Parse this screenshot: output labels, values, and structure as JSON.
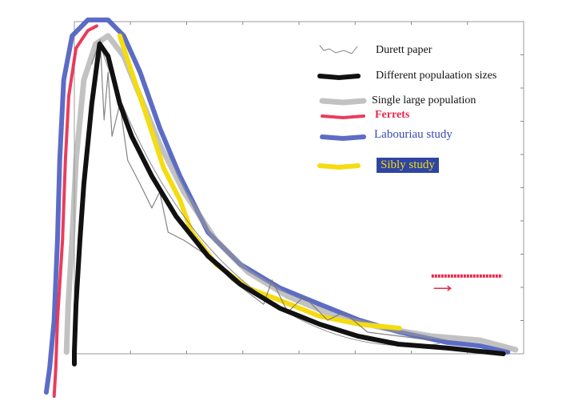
{
  "chart_data": {
    "type": "line",
    "title": "",
    "xlabel": "",
    "ylabel": "",
    "xlim": [
      0,
      8
    ],
    "ylim": [
      0,
      10
    ],
    "x_ticks": [
      1,
      2,
      3,
      4,
      5,
      6,
      7
    ],
    "y_ticks": [
      1,
      2,
      3,
      4,
      5,
      6,
      7,
      8,
      9
    ],
    "grid": false,
    "legend_position": "top-right",
    "series": [
      {
        "name": "Durett paper",
        "color": "#777777",
        "style": "thin-noisy",
        "points": [
          [
            0.31,
            8.72
          ],
          [
            0.46,
            9.45
          ],
          [
            0.53,
            7.04
          ],
          [
            0.6,
            8.48
          ],
          [
            0.67,
            6.55
          ],
          [
            0.81,
            7.52
          ],
          [
            0.95,
            5.83
          ],
          [
            1.17,
            5.11
          ],
          [
            1.38,
            4.39
          ],
          [
            1.52,
            4.87
          ],
          [
            1.67,
            3.66
          ],
          [
            1.95,
            3.42
          ],
          [
            2.38,
            2.94
          ],
          [
            2.8,
            2.22
          ],
          [
            3.37,
            1.49
          ],
          [
            3.52,
            2.22
          ],
          [
            3.8,
            1.25
          ],
          [
            4.09,
            1.73
          ],
          [
            4.51,
            1.01
          ],
          [
            4.8,
            1.25
          ],
          [
            5.22,
            0.65
          ],
          [
            5.79,
            0.53
          ],
          [
            6.36,
            0.41
          ]
        ]
      },
      {
        "name": "Different populaation sizes",
        "color": "#111111",
        "style": "thick",
        "points": [
          [
            0,
            -0.31
          ],
          [
            0,
            0.05
          ],
          [
            0.03,
            1.49
          ],
          [
            0.1,
            3.42
          ],
          [
            0.17,
            5.11
          ],
          [
            0.31,
            7.52
          ],
          [
            0.45,
            9.33
          ],
          [
            0.6,
            8.96
          ],
          [
            0.81,
            7.52
          ],
          [
            1.02,
            6.55
          ],
          [
            1.38,
            5.35
          ],
          [
            1.81,
            4.14
          ],
          [
            2.38,
            2.94
          ],
          [
            2.95,
            2.1
          ],
          [
            3.66,
            1.37
          ],
          [
            4.37,
            0.89
          ],
          [
            5.05,
            0.53
          ],
          [
            5.77,
            0.29
          ],
          [
            6.65,
            0.17
          ],
          [
            7.64,
            0
          ]
        ]
      },
      {
        "name": "Single large population",
        "color": "#9a9a9a",
        "style": "speckled",
        "points": [
          [
            -0.14,
            0.05
          ],
          [
            -0.11,
            1.49
          ],
          [
            -0.04,
            3.42
          ],
          [
            0.03,
            5.83
          ],
          [
            0.17,
            8.24
          ],
          [
            0.38,
            9.33
          ],
          [
            0.6,
            9.57
          ],
          [
            0.88,
            8.96
          ],
          [
            1.17,
            7.76
          ],
          [
            1.52,
            6.31
          ],
          [
            1.95,
            4.87
          ],
          [
            2.52,
            3.42
          ],
          [
            3.09,
            2.46
          ],
          [
            3.8,
            1.73
          ],
          [
            4.65,
            1.13
          ],
          [
            5.51,
            0.77
          ],
          [
            6.36,
            0.53
          ],
          [
            7.22,
            0.41
          ],
          [
            7.86,
            0.12
          ]
        ]
      },
      {
        "name": "Ferrets",
        "color": "#e8274a",
        "style": "speckled",
        "points": [
          [
            -0.36,
            -1.28
          ],
          [
            -0.33,
            -0.43
          ],
          [
            -0.3,
            1.01
          ],
          [
            -0.21,
            3.42
          ],
          [
            -0.16,
            5.83
          ],
          [
            -0.1,
            7.76
          ],
          [
            0.03,
            9.2
          ],
          [
            0.24,
            9.73
          ],
          [
            0.41,
            9.88
          ]
        ]
      },
      {
        "name": "Labouriau study",
        "color": "#4a5cc0",
        "style": "thick",
        "points": [
          [
            -0.5,
            -1.16
          ],
          [
            -0.44,
            -0.43
          ],
          [
            -0.36,
            1.01
          ],
          [
            -0.3,
            3.42
          ],
          [
            -0.26,
            5.83
          ],
          [
            -0.19,
            8.24
          ],
          [
            -0.04,
            9.57
          ],
          [
            0.24,
            10.05
          ],
          [
            0.6,
            10.05
          ],
          [
            0.88,
            9.57
          ],
          [
            1.17,
            8.48
          ],
          [
            1.52,
            6.8
          ],
          [
            1.88,
            5.35
          ],
          [
            2.38,
            3.66
          ],
          [
            2.95,
            2.7
          ],
          [
            3.66,
            1.98
          ],
          [
            4.37,
            1.49
          ],
          [
            5.08,
            1.01
          ],
          [
            5.79,
            0.65
          ],
          [
            6.65,
            0.34
          ],
          [
            7.22,
            0.24
          ],
          [
            7.72,
            0.05
          ]
        ]
      },
      {
        "name": "Sibly study",
        "color": "#f5dc10",
        "style": "thick",
        "points": [
          [
            0.81,
            9.57
          ],
          [
            1.02,
            8.48
          ],
          [
            1.31,
            7.04
          ],
          [
            1.59,
            5.59
          ],
          [
            1.88,
            4.63
          ],
          [
            2.09,
            3.66
          ],
          [
            2.52,
            2.7
          ],
          [
            3.09,
            1.98
          ],
          [
            3.66,
            1.61
          ],
          [
            4.37,
            1.13
          ],
          [
            5.08,
            0.89
          ],
          [
            5.79,
            0.77
          ]
        ]
      }
    ],
    "annotations": [
      {
        "type": "ferrets-level-mark",
        "color": "#e8274a",
        "points": [
          [
            6.36,
            2.34
          ],
          [
            7.62,
            2.34
          ]
        ]
      },
      {
        "type": "arrow",
        "color": "#e8274a",
        "points": [
          [
            6.4,
            1.97
          ],
          [
            6.7,
            1.97
          ]
        ]
      }
    ]
  }
}
